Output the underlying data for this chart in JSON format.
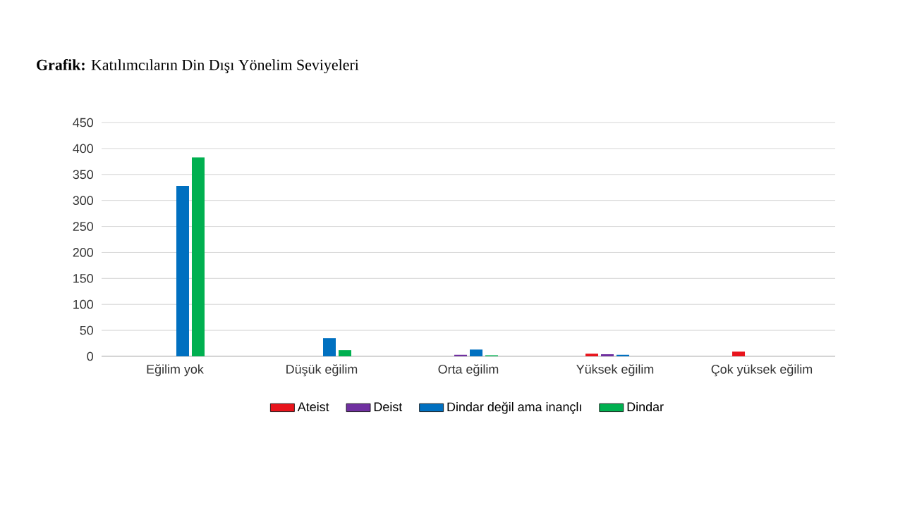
{
  "chart_data": {
    "type": "bar",
    "title": "**Grafik:** Katılımcıların Din Dışı Yönelim Seviyeleri",
    "categories": [
      "Eğilim yok",
      "Düşük eğilim",
      "Orta eğilim",
      "Yüksek eğilim",
      "Çok yüksek eğilim"
    ],
    "series": [
      {
        "name": "Ateist",
        "color": "#e8141c",
        "values": [
          0,
          0,
          0,
          5,
          9
        ]
      },
      {
        "name": "Deist",
        "color": "#7030a0",
        "values": [
          0,
          0,
          3,
          4,
          0
        ]
      },
      {
        "name": "Dindar değil ama inançlı",
        "color": "#0070c0",
        "values": [
          328,
          35,
          13,
          3,
          0
        ]
      },
      {
        "name": "Dindar",
        "color": "#00b050",
        "values": [
          383,
          12,
          2,
          0,
          0
        ]
      }
    ],
    "ylim": [
      0,
      450
    ],
    "yticks": [
      0,
      50,
      100,
      150,
      200,
      250,
      300,
      350,
      400,
      450
    ],
    "grid": "y",
    "legend": "bottom"
  }
}
